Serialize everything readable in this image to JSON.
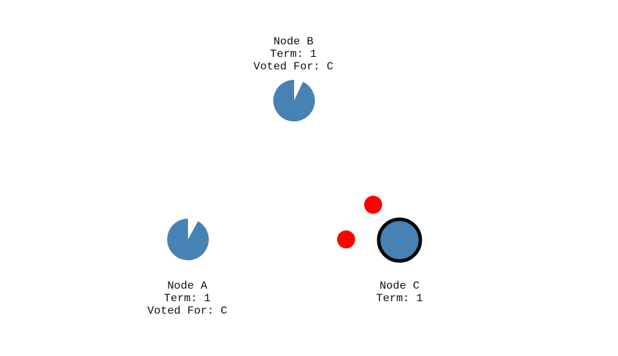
{
  "colors": {
    "background": "#ffffff",
    "node_fill": "#4682b4",
    "leader_ring": "#000000",
    "message": "#ff0000",
    "text": "#111111"
  },
  "nodes": [
    {
      "id": "A",
      "name": "Node A",
      "term_text": "Term: 1",
      "voted_for_text": "Voted For: C",
      "role": "follower",
      "election_timeout_remaining": 0.92
    },
    {
      "id": "B",
      "name": "Node B",
      "term_text": "Term: 1",
      "voted_for_text": "Voted For: C",
      "role": "follower",
      "election_timeout_remaining": 0.93
    },
    {
      "id": "C",
      "name": "Node C",
      "term_text": "Term: 1",
      "role": "leader"
    }
  ],
  "messages": [
    {
      "from": "C",
      "to": "A"
    },
    {
      "from": "C",
      "to": "B"
    }
  ]
}
